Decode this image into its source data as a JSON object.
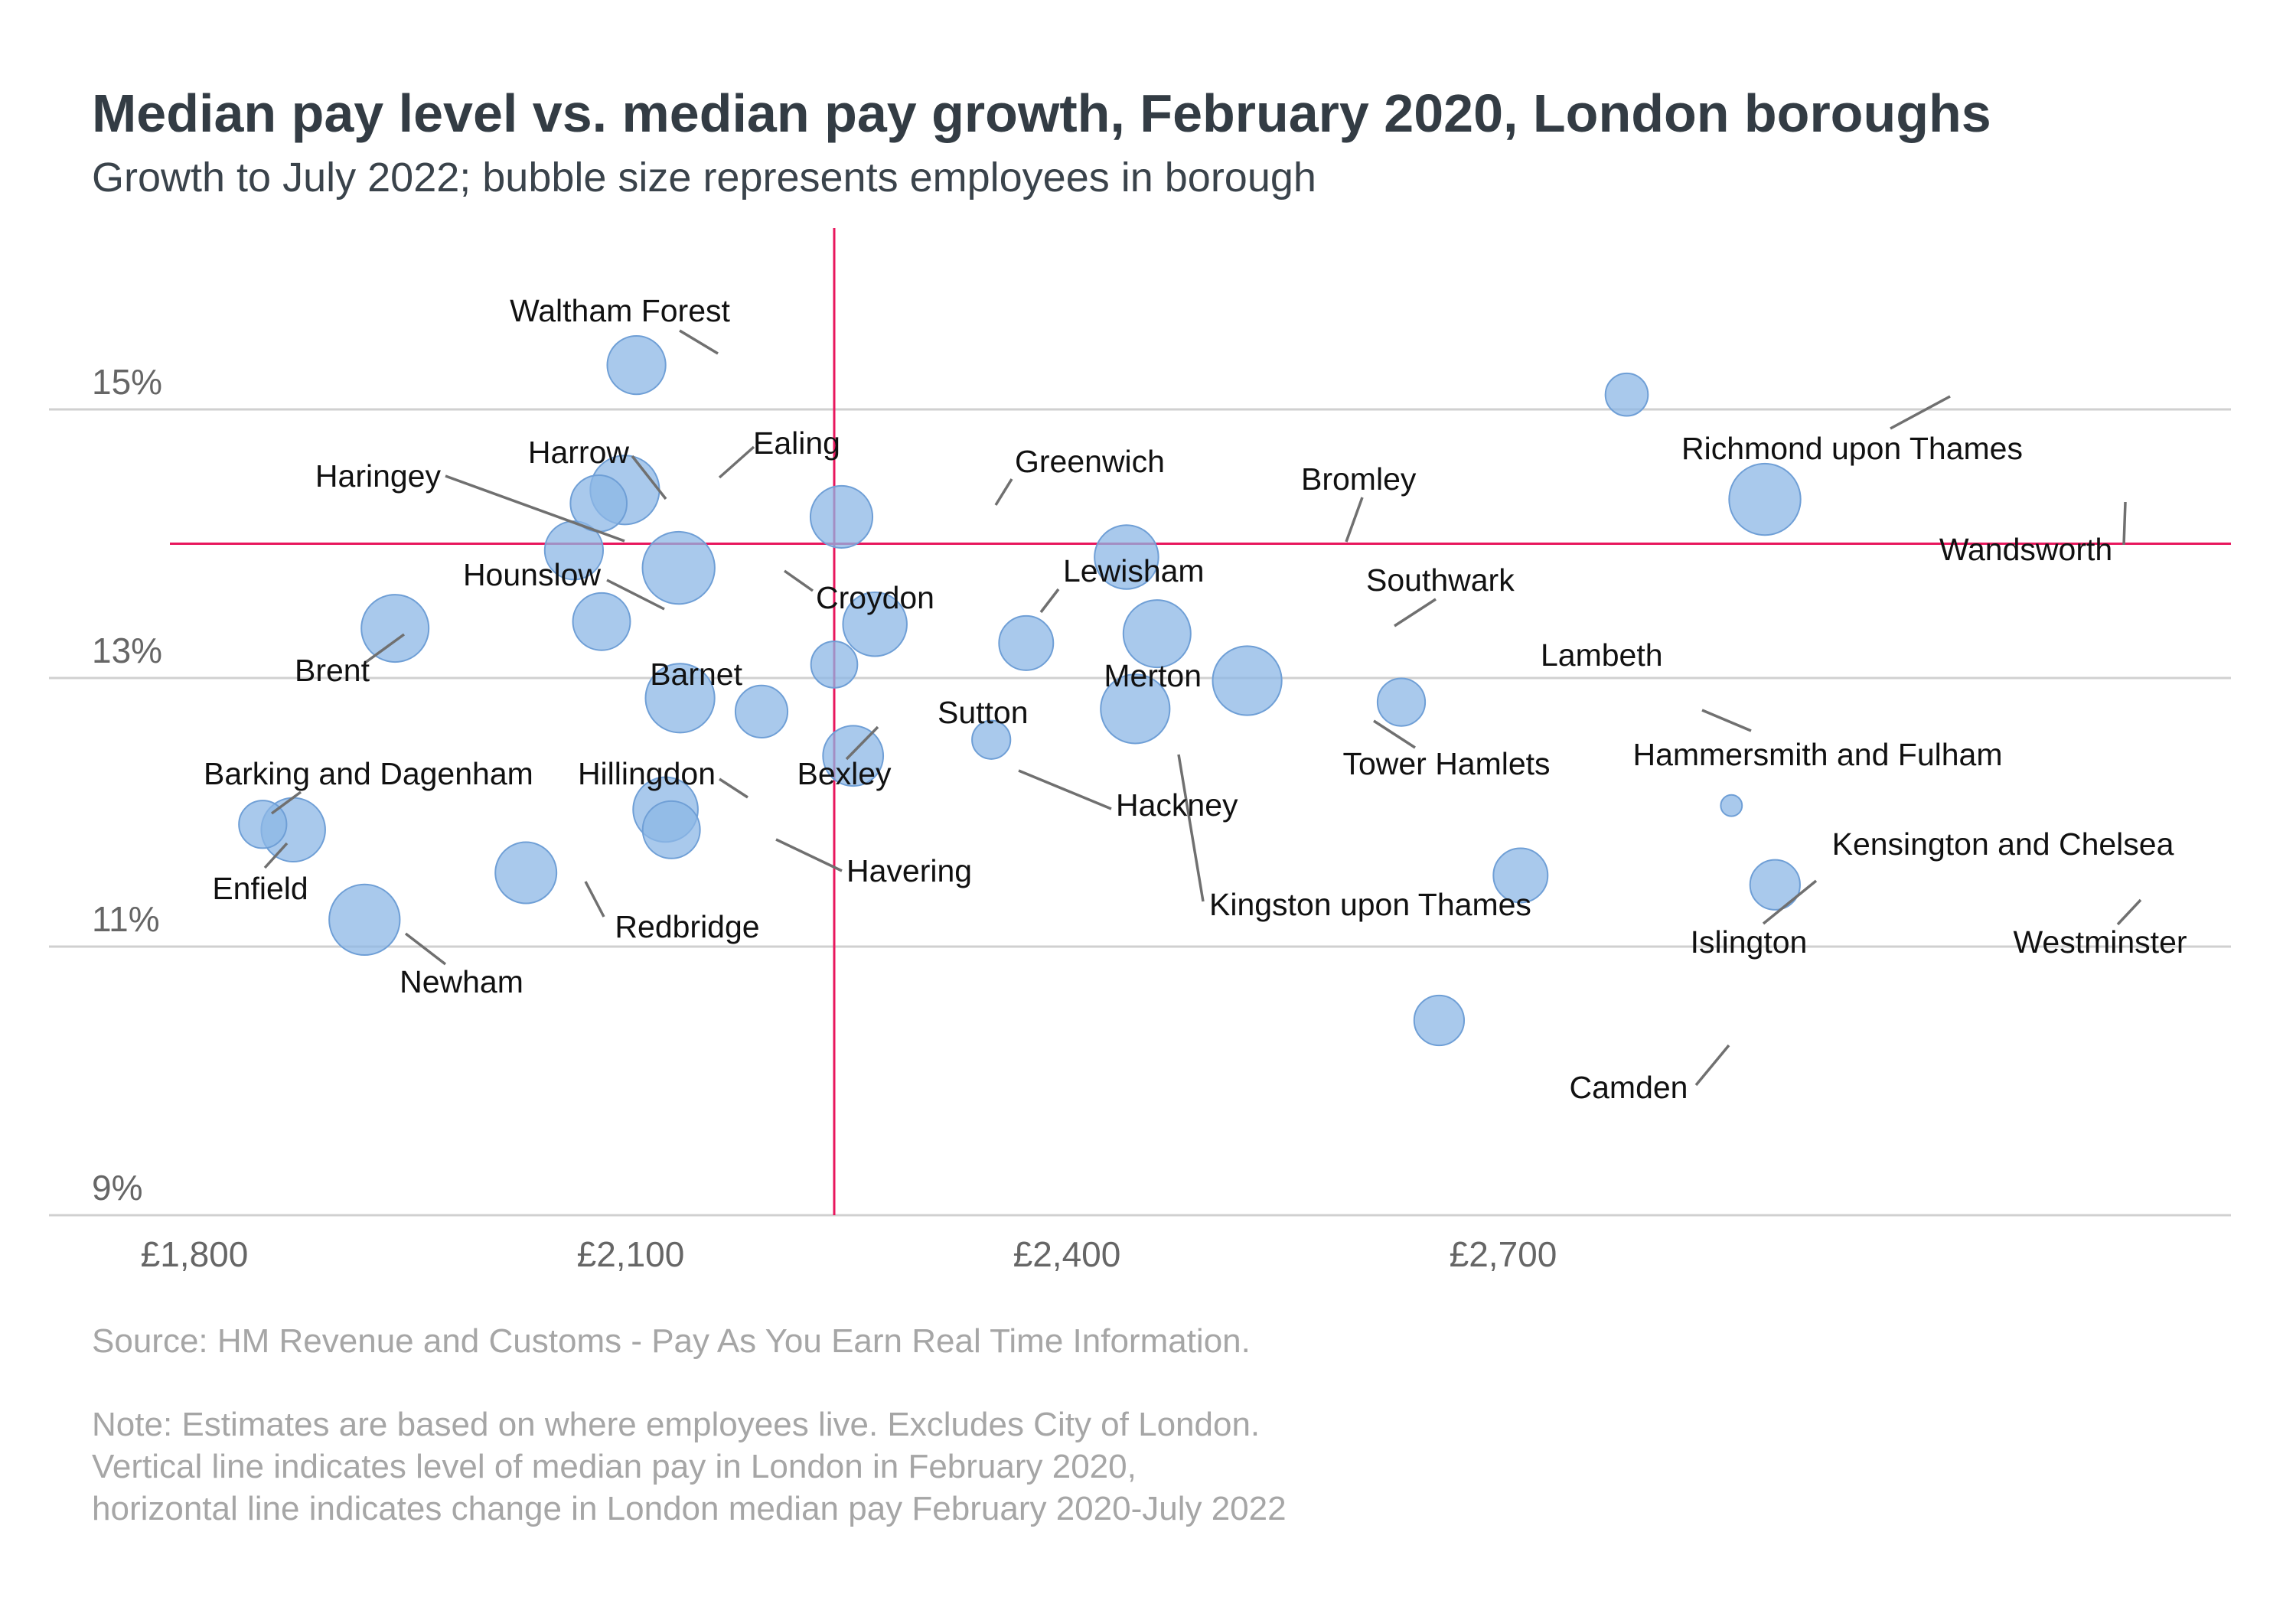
{
  "chart_data": {
    "type": "scatter",
    "title": "Median pay level vs. median pay growth, February 2020, London boroughs",
    "subtitle": "Growth to July 2022; bubble size represents employees in borough",
    "xlabel": "",
    "ylabel": "",
    "xlim": [
      1740,
      2880
    ],
    "ylim": [
      9,
      15.2
    ],
    "x_ticks": [
      {
        "value": 1800,
        "label": "£1,800"
      },
      {
        "value": 2100,
        "label": "£2,100"
      },
      {
        "value": 2400,
        "label": "£2,400"
      },
      {
        "value": 2700,
        "label": "£2,700"
      }
    ],
    "y_ticks": [
      {
        "value": 9,
        "label": "9%"
      },
      {
        "value": 11,
        "label": "11%"
      },
      {
        "value": 13,
        "label": "13%"
      },
      {
        "value": 15,
        "label": "15%"
      }
    ],
    "grid": "horizontal",
    "reference_lines": {
      "x": 2240,
      "y": 14
    },
    "colors": {
      "bubble": "#8cb7e6",
      "reference": "#e8175d",
      "grid": "#d0d0d0"
    },
    "points": [
      {
        "name": "Waltham Forest",
        "x": 2104,
        "y": 15.33,
        "size": 3.0
      },
      {
        "name": "Richmond upon Thames",
        "x": 2785,
        "y": 15.11,
        "size": 1.6
      },
      {
        "name": "Wandsworth",
        "x": 2880,
        "y": 14.33,
        "size": 4.5
      },
      {
        "name": "Ealing",
        "x": 2096,
        "y": 14.4,
        "size": 4.2
      },
      {
        "name": "Harrow",
        "x": 2078,
        "y": 14.3,
        "size": 2.8
      },
      {
        "name": "Greenwich",
        "x": 2245,
        "y": 14.2,
        "size": 3.4
      },
      {
        "name": "Bromley",
        "x": 2441,
        "y": 13.9,
        "size": 3.6
      },
      {
        "name": "Haringey",
        "x": 2061,
        "y": 13.95,
        "size": 3.0
      },
      {
        "name": "Croydon",
        "x": 2133,
        "y": 13.82,
        "size": 4.6
      },
      {
        "name": "Lewisham",
        "x": 2268,
        "y": 13.4,
        "size": 3.6
      },
      {
        "name": "Hounslow",
        "x": 2080,
        "y": 13.42,
        "size": 2.9
      },
      {
        "name": "Southwark",
        "x": 2462,
        "y": 13.33,
        "size": 4.0
      },
      {
        "name": "Brent",
        "x": 1938,
        "y": 13.37,
        "size": 4.0
      },
      {
        "name": "Merton",
        "x": 2372,
        "y": 13.26,
        "size": 2.6
      },
      {
        "name": "Lambeth",
        "x": 2524,
        "y": 12.98,
        "size": 4.2
      },
      {
        "name": "Sutton",
        "x": 2240,
        "y": 13.1,
        "size": 1.9
      },
      {
        "name": "Barnet",
        "x": 2134,
        "y": 12.85,
        "size": 4.2
      },
      {
        "name": "Tower Hamlets",
        "x": 2447,
        "y": 12.77,
        "size": 4.2
      },
      {
        "name": "Hammersmith and Fulham",
        "x": 2630,
        "y": 12.82,
        "size": 2.0
      },
      {
        "name": "Bexley",
        "x": 2190,
        "y": 12.75,
        "size": 2.4
      },
      {
        "name": "Kingston upon Thames",
        "x": 2348,
        "y": 12.54,
        "size": 1.3
      },
      {
        "name": "Hackney",
        "x": 2253,
        "y": 12.42,
        "size": 3.2
      },
      {
        "name": "Hillingdon",
        "x": 2124,
        "y": 12.02,
        "size": 3.7
      },
      {
        "name": "Havering",
        "x": 2128,
        "y": 11.87,
        "size": 2.9
      },
      {
        "name": "Barking and Dagenham",
        "x": 1847,
        "y": 11.91,
        "size": 2.0
      },
      {
        "name": "Enfield",
        "x": 1868,
        "y": 11.87,
        "size": 3.6
      },
      {
        "name": "Kensington and Chelsea",
        "x": 2857,
        "y": 12.05,
        "size": 0.4
      },
      {
        "name": "Islington",
        "x": 2712,
        "y": 11.53,
        "size": 2.6
      },
      {
        "name": "Redbridge",
        "x": 2028,
        "y": 11.55,
        "size": 3.3
      },
      {
        "name": "Westminster",
        "x": 2887,
        "y": 11.46,
        "size": 2.2
      },
      {
        "name": "Newham",
        "x": 1917,
        "y": 11.2,
        "size": 4.4
      },
      {
        "name": "Camden",
        "x": 2656,
        "y": 10.45,
        "size": 2.2
      }
    ]
  },
  "footer": {
    "source": "Source: HM Revenue and Customs - Pay As You Earn Real Time Information.",
    "note_lines": [
      "Note: Estimates are based on where employees live. Excludes City of London.",
      "Vertical line indicates level of median pay in London in February 2020,",
      "horizontal line indicates change in London median pay February 2020-July 2022"
    ]
  }
}
